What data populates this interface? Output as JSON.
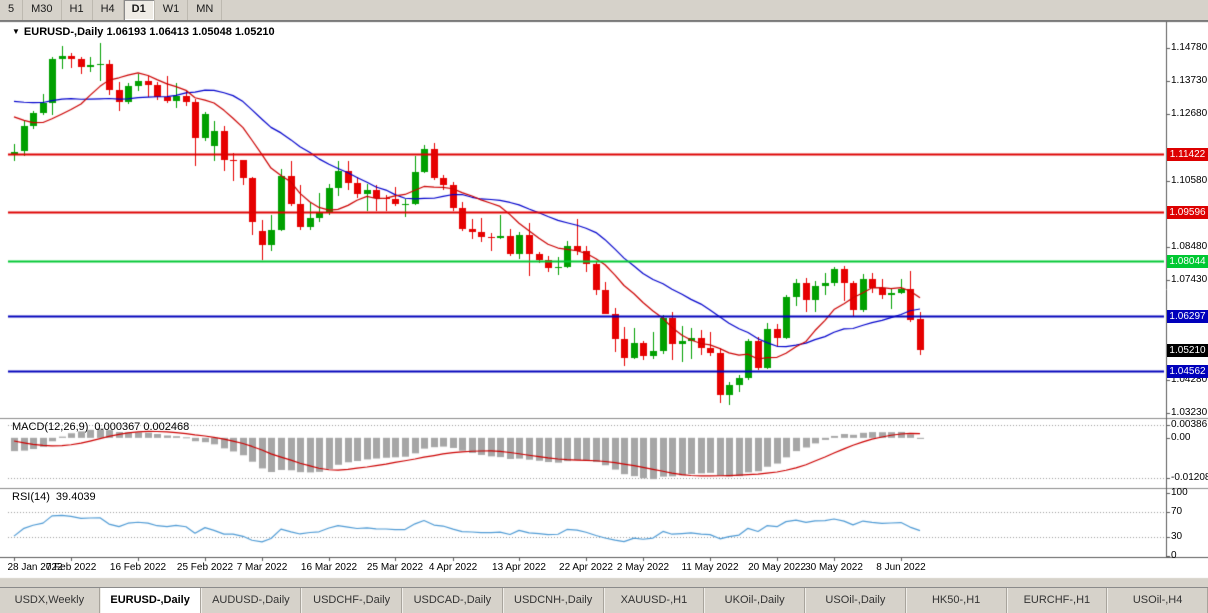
{
  "toolbar": {
    "timeframes": [
      "5",
      "M30",
      "H1",
      "H4",
      "D1",
      "W1",
      "MN"
    ],
    "active_timeframe": "D1"
  },
  "main_chart": {
    "dropdown_icon": "▼",
    "title_symbol": "EURUSD-,Daily",
    "title_ohlc": "1.06193 1.06413 1.05048 1.05210",
    "price_scale": {
      "top_price": 1.1478,
      "bottom_price": 1.0329,
      "plain_labels": [
        "1.14780",
        "1.13730",
        "1.12680",
        "1.10580",
        "1.08480",
        "1.07430",
        "1.04280",
        "1.03230"
      ]
    },
    "level_lines": [
      {
        "price": 1.11422,
        "label": "1.11422",
        "color": "#dd0000"
      },
      {
        "price": 1.09596,
        "label": "1.09596",
        "color": "#dd0000"
      },
      {
        "price": 1.08044,
        "label": "1.08044",
        "color": "#00c832"
      },
      {
        "price": 1.06297,
        "label": "1.06297",
        "color": "#0000bb"
      },
      {
        "price": 1.04562,
        "label": "1.04562",
        "color": "#0000bb"
      }
    ],
    "current_price_badge": {
      "price": 1.0521,
      "label": "1.05210",
      "color": "#000000"
    }
  },
  "macd_panel": {
    "label": "MACD(12,26,9)",
    "values_text": "0.000367 0.002468",
    "scale": {
      "max": 0.00386,
      "min": -0.01208
    },
    "axis_labels": [
      {
        "value": 0.00386,
        "label": "0.00386"
      },
      {
        "value": 0,
        "label": "0.00"
      },
      {
        "value": -0.01208,
        "label": "-0.01208"
      }
    ],
    "params": {
      "fast": 12,
      "slow": 26,
      "signal": 9
    }
  },
  "rsi_panel": {
    "label": "RSI(14)",
    "value_text": "39.4039",
    "period": 14,
    "axis_labels": [
      {
        "value": 100,
        "label": "100"
      },
      {
        "value": 70,
        "label": "70"
      },
      {
        "value": 30,
        "label": "30"
      },
      {
        "value": 0,
        "label": "0"
      }
    ],
    "threshold_levels": [
      70,
      30
    ]
  },
  "tabs": [
    {
      "label": "USDX,Weekly",
      "active": false
    },
    {
      "label": "EURUSD-,Daily",
      "active": true
    },
    {
      "label": "AUDUSD-,Daily",
      "active": false
    },
    {
      "label": "USDCHF-,Daily",
      "active": false
    },
    {
      "label": "USDCAD-,Daily",
      "active": false
    },
    {
      "label": "USDCNH-,Daily",
      "active": false
    },
    {
      "label": "XAUUSD-,H1",
      "active": false
    },
    {
      "label": "UKOil-,Daily",
      "active": false
    },
    {
      "label": "USOil-,Daily",
      "active": false
    },
    {
      "label": "HK50-,H1",
      "active": false
    },
    {
      "label": "EURCHF-,H1",
      "active": false
    },
    {
      "label": "USOil-,H4",
      "active": false
    }
  ],
  "colors": {
    "bull_candle": "#00a000",
    "bear_candle": "#e60000",
    "ma_fast_red": "#cc0000",
    "ma_slow_blue": "#0000cc",
    "macd_histogram": "#a6a6a6",
    "macd_signal": "#cc0000",
    "rsi_line": "#4f9bd5",
    "panel_bg": "#ffffff",
    "app_bg": "#d6d2ca",
    "dotted_level": "#9a9a9a"
  },
  "chart_data": {
    "type": "candlestick",
    "symbol": "EURUSD-,Daily",
    "timeframe": "Daily",
    "y_range": [
      1.0329,
      1.1478
    ],
    "x_axis_labels": [
      {
        "index": 0,
        "label": "28 Jan 2022"
      },
      {
        "index": 6,
        "label": "7 Feb 2022"
      },
      {
        "index": 13,
        "label": "16 Feb 2022"
      },
      {
        "index": 20,
        "label": "25 Feb 2022"
      },
      {
        "index": 26,
        "label": "7 Mar 2022"
      },
      {
        "index": 33,
        "label": "16 Mar 2022"
      },
      {
        "index": 40,
        "label": "25 Mar 2022"
      },
      {
        "index": 46,
        "label": "4 Apr 2022"
      },
      {
        "index": 53,
        "label": "13 Apr 2022"
      },
      {
        "index": 60,
        "label": "22 Apr 2022"
      },
      {
        "index": 66,
        "label": "2 May 2022"
      },
      {
        "index": 73,
        "label": "11 May 2022"
      },
      {
        "index": 80,
        "label": "20 May 2022"
      },
      {
        "index": 86,
        "label": "30 May 2022"
      },
      {
        "index": 93,
        "label": "8 Jun 2022"
      }
    ],
    "ma_periods": {
      "fast_red": 10,
      "slow_blue": 20
    },
    "indicator_warmup_closes": [
      1.1327,
      1.1311,
      1.1315,
      1.137,
      1.1296,
      1.1285,
      1.1305,
      1.1292,
      1.1296,
      1.1298,
      1.1322,
      1.1362,
      1.1411,
      1.1455,
      1.1414,
      1.1413,
      1.1324,
      1.1341,
      1.1343,
      1.1303,
      1.1325,
      1.1301,
      1.1303,
      1.1241,
      1.1151,
      1.1143
    ],
    "ohlc": [
      [
        1.1143,
        1.1173,
        1.1119,
        1.1148
      ],
      [
        1.1152,
        1.1248,
        1.1135,
        1.1232
      ],
      [
        1.1232,
        1.1279,
        1.1221,
        1.1273
      ],
      [
        1.1273,
        1.1331,
        1.1267,
        1.1305
      ],
      [
        1.1305,
        1.1451,
        1.1266,
        1.1443
      ],
      [
        1.1443,
        1.1483,
        1.1411,
        1.1454
      ],
      [
        1.1454,
        1.1462,
        1.1414,
        1.1443
      ],
      [
        1.1443,
        1.1449,
        1.1396,
        1.1417
      ],
      [
        1.1417,
        1.1448,
        1.1402,
        1.1423
      ],
      [
        1.1423,
        1.1495,
        1.1375,
        1.1428
      ],
      [
        1.1428,
        1.144,
        1.133,
        1.1345
      ],
      [
        1.1345,
        1.1369,
        1.1278,
        1.1306
      ],
      [
        1.1306,
        1.1368,
        1.1301,
        1.1358
      ],
      [
        1.1358,
        1.1395,
        1.1341,
        1.1374
      ],
      [
        1.1374,
        1.1389,
        1.1324,
        1.1362
      ],
      [
        1.1362,
        1.1369,
        1.1312,
        1.1324
      ],
      [
        1.1324,
        1.139,
        1.1304,
        1.1309
      ],
      [
        1.1309,
        1.1368,
        1.1287,
        1.1327
      ],
      [
        1.1327,
        1.1342,
        1.1294,
        1.1307
      ],
      [
        1.1307,
        1.1317,
        1.1106,
        1.1193
      ],
      [
        1.1193,
        1.1274,
        1.1184,
        1.127
      ],
      [
        1.1168,
        1.1246,
        1.1121,
        1.1216
      ],
      [
        1.1216,
        1.1232,
        1.109,
        1.1125
      ],
      [
        1.1125,
        1.1145,
        1.1058,
        1.1122
      ],
      [
        1.1122,
        1.1125,
        1.1045,
        1.1065
      ],
      [
        1.1065,
        1.107,
        1.0885,
        1.0926
      ],
      [
        1.09,
        1.0932,
        1.0806,
        1.0854
      ],
      [
        1.0854,
        1.095,
        1.0834,
        1.0902
      ],
      [
        1.0902,
        1.1095,
        1.09,
        1.1073
      ],
      [
        1.1073,
        1.1121,
        1.0977,
        1.0985
      ],
      [
        1.0985,
        1.1043,
        1.0901,
        1.0911
      ],
      [
        1.0911,
        1.0991,
        1.0902,
        1.0941
      ],
      [
        1.0941,
        1.1019,
        1.0926,
        1.0955
      ],
      [
        1.0955,
        1.1047,
        1.0949,
        1.1036
      ],
      [
        1.1036,
        1.1119,
        1.1009,
        1.109
      ],
      [
        1.109,
        1.1119,
        1.1027,
        1.1051
      ],
      [
        1.1051,
        1.1069,
        1.1004,
        1.1015
      ],
      [
        1.1015,
        1.1046,
        1.0962,
        1.1027
      ],
      [
        1.1027,
        1.1044,
        1.0963,
        1.1004
      ],
      [
        1.1004,
        1.1014,
        1.0963,
        1.0999
      ],
      [
        1.0999,
        1.1039,
        1.0979,
        1.0983
      ],
      [
        1.0983,
        1.0999,
        1.0944,
        1.0985
      ],
      [
        1.0985,
        1.1137,
        1.0982,
        1.1086
      ],
      [
        1.1086,
        1.1171,
        1.1083,
        1.1158
      ],
      [
        1.1158,
        1.1178,
        1.106,
        1.1067
      ],
      [
        1.1067,
        1.1076,
        1.1027,
        1.1045
      ],
      [
        1.1045,
        1.1055,
        1.0961,
        1.0971
      ],
      [
        1.0971,
        1.0991,
        1.0899,
        1.0905
      ],
      [
        1.0905,
        1.0937,
        1.0874,
        1.0895
      ],
      [
        1.0895,
        1.0939,
        1.0864,
        1.0879
      ],
      [
        1.0879,
        1.0892,
        1.0837,
        1.0876
      ],
      [
        1.0876,
        1.095,
        1.0872,
        1.0883
      ],
      [
        1.0883,
        1.0904,
        1.0821,
        1.0827
      ],
      [
        1.0827,
        1.0895,
        1.0809,
        1.0886
      ],
      [
        1.0886,
        1.0923,
        1.0757,
        1.0827
      ],
      [
        1.0827,
        1.0832,
        1.0796,
        1.0808
      ],
      [
        1.0808,
        1.0821,
        1.0769,
        1.0781
      ],
      [
        1.0781,
        1.0815,
        1.0761,
        1.0786
      ],
      [
        1.0786,
        1.0867,
        1.0782,
        1.0852
      ],
      [
        1.0852,
        1.0936,
        1.0824,
        1.0837
      ],
      [
        1.0837,
        1.0852,
        1.077,
        1.0794
      ],
      [
        1.0794,
        1.0802,
        1.0697,
        1.0712
      ],
      [
        1.0712,
        1.0738,
        1.0635,
        1.0637
      ],
      [
        1.0637,
        1.0655,
        1.0515,
        1.0558
      ],
      [
        1.0558,
        1.0594,
        1.0471,
        1.0498
      ],
      [
        1.0498,
        1.0593,
        1.0493,
        1.0545
      ],
      [
        1.0545,
        1.0549,
        1.049,
        1.0504
      ],
      [
        1.0504,
        1.0578,
        1.0495,
        1.052
      ],
      [
        1.052,
        1.0632,
        1.0508,
        1.0622
      ],
      [
        1.0622,
        1.0642,
        1.0492,
        1.054
      ],
      [
        1.054,
        1.0599,
        1.0483,
        1.0551
      ],
      [
        1.0551,
        1.0591,
        1.0495,
        1.0561
      ],
      [
        1.0561,
        1.0585,
        1.0507,
        1.0528
      ],
      [
        1.0528,
        1.0579,
        1.0503,
        1.0514
      ],
      [
        1.0514,
        1.0527,
        1.0354,
        1.0379
      ],
      [
        1.0379,
        1.042,
        1.0348,
        1.0411
      ],
      [
        1.0411,
        1.0443,
        1.0389,
        1.0434
      ],
      [
        1.0434,
        1.0557,
        1.0427,
        1.0549
      ],
      [
        1.0549,
        1.0564,
        1.0459,
        1.0464
      ],
      [
        1.0464,
        1.0607,
        1.0461,
        1.0588
      ],
      [
        1.0588,
        1.0604,
        1.0532,
        1.0561
      ],
      [
        1.0561,
        1.0697,
        1.0556,
        1.0691
      ],
      [
        1.0691,
        1.0748,
        1.0661,
        1.0734
      ],
      [
        1.0734,
        1.0749,
        1.0642,
        1.0681
      ],
      [
        1.0681,
        1.0741,
        1.0641,
        1.0724
      ],
      [
        1.0724,
        1.0765,
        1.0697,
        1.0733
      ],
      [
        1.0733,
        1.0786,
        1.0726,
        1.0777
      ],
      [
        1.0777,
        1.0787,
        1.0678,
        1.0733
      ],
      [
        1.0733,
        1.0739,
        1.0627,
        1.065
      ],
      [
        1.065,
        1.0764,
        1.0641,
        1.0748
      ],
      [
        1.0748,
        1.0765,
        1.0704,
        1.0719
      ],
      [
        1.0719,
        1.0748,
        1.0683,
        1.0695
      ],
      [
        1.0695,
        1.0715,
        1.0653,
        1.0704
      ],
      [
        1.0704,
        1.0748,
        1.0699,
        1.0714
      ],
      [
        1.0714,
        1.0773,
        1.0611,
        1.0617
      ],
      [
        1.06193,
        1.06413,
        1.05048,
        1.0521
      ]
    ]
  }
}
